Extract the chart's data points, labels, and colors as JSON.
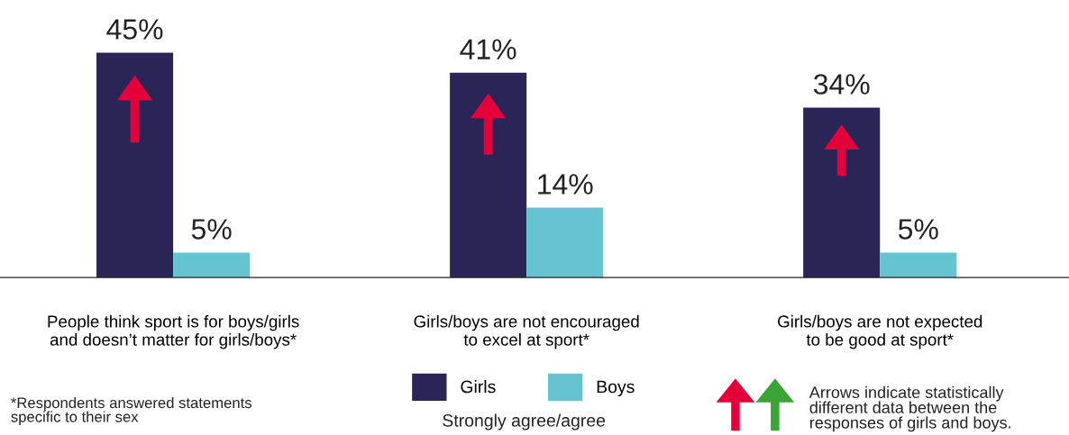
{
  "chart_data": {
    "type": "bar",
    "categories": [
      "People think sport is for boys/girls\nand doesn’t matter for girls/boys*",
      "Girls/boys are not encouraged\nto excel at sport*",
      "Girls/boys are not expected\nto be good at sport*"
    ],
    "series": [
      {
        "name": "Girls",
        "color": "#2a2457",
        "values": [
          45,
          41,
          34
        ],
        "value_labels": [
          "45%",
          "41%",
          "34%"
        ]
      },
      {
        "name": "Boys",
        "color": "#66c3d0",
        "values": [
          5,
          14,
          5
        ],
        "value_labels": [
          "5%",
          "14%",
          "5%"
        ]
      }
    ],
    "legend": "bottom",
    "annotations": [
      "Strongly agree/agree",
      "*Respondents answered statements\nspecific to their sex",
      "Arrows indicate statistically\ndifferent data between the\nresponses of girls and boys."
    ]
  }
}
